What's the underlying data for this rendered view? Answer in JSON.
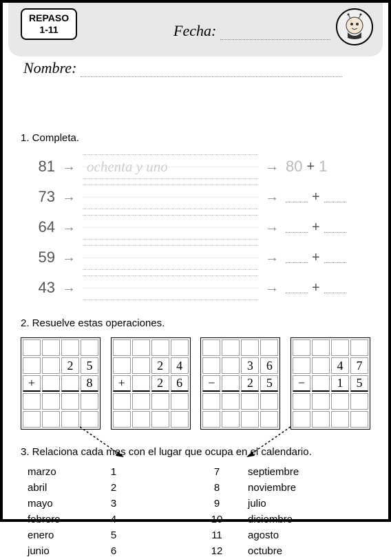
{
  "header": {
    "badge_line1": "REPASO",
    "badge_line2": "1-11",
    "fecha_label": "Fecha:",
    "nombre_label": "Nombre:"
  },
  "ex1": {
    "title": "1. Completa.",
    "rows": [
      {
        "num": "81",
        "word": "ochenta y uno",
        "tens": "80",
        "ones": "1",
        "filled": true
      },
      {
        "num": "73",
        "word": "",
        "tens": "",
        "ones": "",
        "filled": false
      },
      {
        "num": "64",
        "word": "",
        "tens": "",
        "ones": "",
        "filled": false
      },
      {
        "num": "59",
        "word": "",
        "tens": "",
        "ones": "",
        "filled": false
      },
      {
        "num": "43",
        "word": "",
        "tens": "",
        "ones": "",
        "filled": false
      }
    ]
  },
  "ex2": {
    "title": "2. Resuelve estas operaciones.",
    "ops": [
      {
        "sign": "+",
        "r1": [
          "",
          "2",
          "5"
        ],
        "r2": [
          "",
          "",
          "8"
        ]
      },
      {
        "sign": "+",
        "r1": [
          "",
          "2",
          "4"
        ],
        "r2": [
          "",
          "2",
          "6"
        ]
      },
      {
        "sign": "−",
        "r1": [
          "",
          "3",
          "6"
        ],
        "r2": [
          "",
          "2",
          "5"
        ]
      },
      {
        "sign": "−",
        "r1": [
          "",
          "4",
          "7"
        ],
        "r2": [
          "",
          "1",
          "5"
        ]
      }
    ]
  },
  "ex3": {
    "title": "3. Relaciona cada mes con el lugar que ocupa en el calendario.",
    "left_months": [
      "marzo",
      "abril",
      "mayo",
      "febrero",
      "enero",
      "junio"
    ],
    "left_nums": [
      "1",
      "2",
      "3",
      "4",
      "5",
      "6"
    ],
    "right_nums": [
      "7",
      "8",
      "9",
      "10",
      "11",
      "12"
    ],
    "right_months": [
      "septiembre",
      "noviembre",
      "julio",
      "diciembre",
      "agosto",
      "octubre"
    ]
  },
  "colors": {
    "header_bg": "#e8e8e8",
    "text": "#000000",
    "faded": "#bbbbbb",
    "dotted": "#888888"
  }
}
